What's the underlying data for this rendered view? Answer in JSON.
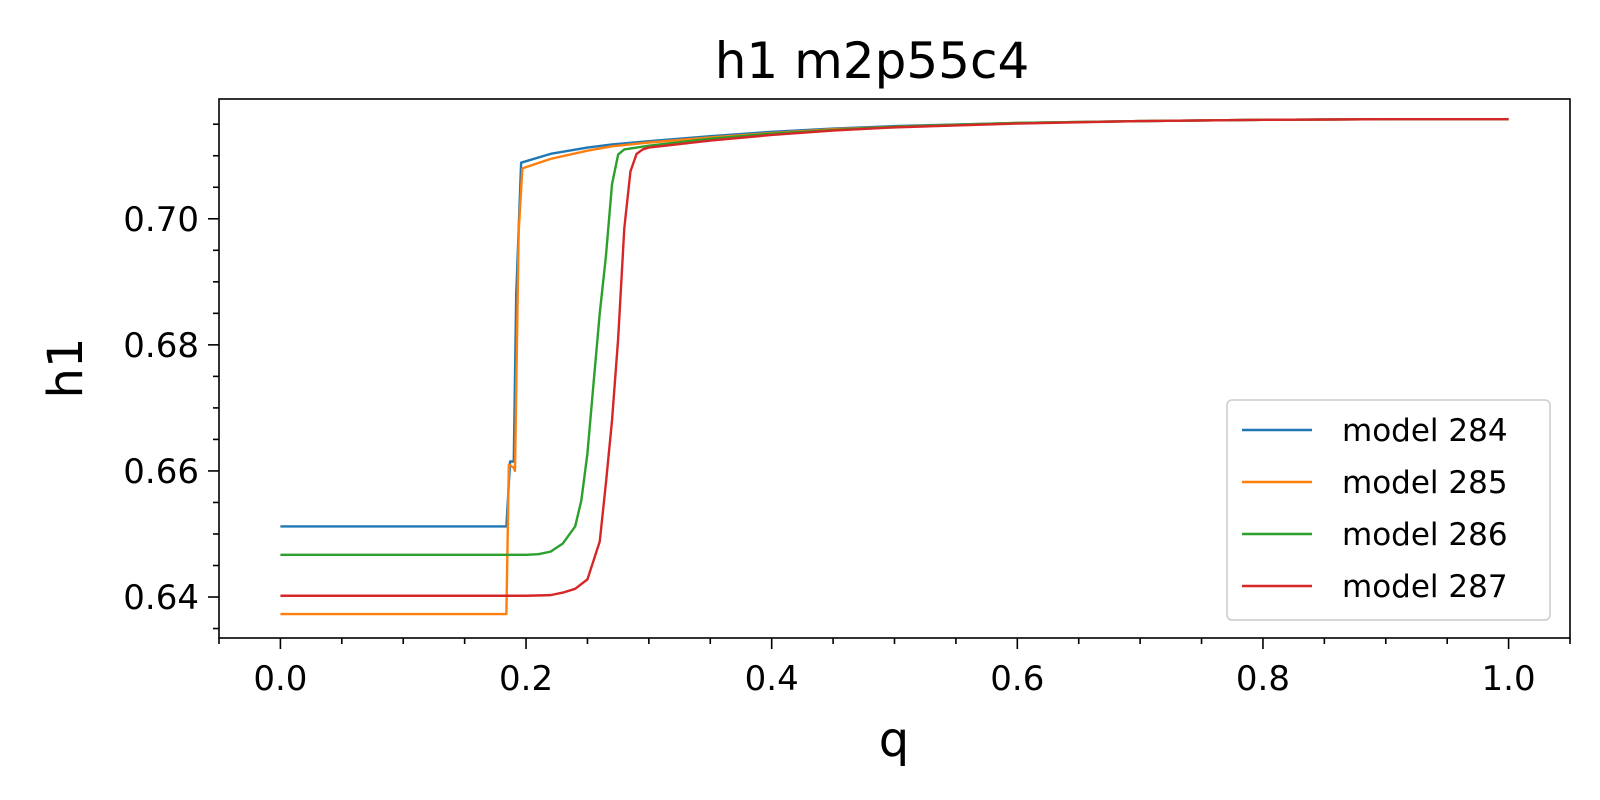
{
  "chart_data": {
    "type": "line",
    "title": "h1 m2p55c4",
    "xlabel": "q",
    "ylabel": "h1",
    "xlim": [
      -0.05,
      1.05
    ],
    "ylim": [
      0.6335,
      0.719
    ],
    "xticks": [
      0.0,
      0.2,
      0.4,
      0.6,
      0.8,
      1.0
    ],
    "xtick_labels": [
      "0.0",
      "0.2",
      "0.4",
      "0.6",
      "0.8",
      "1.0"
    ],
    "yticks": [
      0.64,
      0.66,
      0.68,
      0.7
    ],
    "ytick_labels": [
      "0.64",
      "0.66",
      "0.68",
      "0.70"
    ],
    "x_minor_step": 0.05,
    "y_minor_step": 0.005,
    "grid": false,
    "legend_position": "lower-right",
    "series": [
      {
        "name": "model 284",
        "color": "#1f77b4",
        "x": [
          0.0,
          0.184,
          0.187,
          0.19,
          0.192,
          0.196,
          0.22,
          0.25,
          0.27,
          0.3,
          0.35,
          0.4,
          0.45,
          0.5,
          0.6,
          0.7,
          0.8,
          0.9,
          1.0
        ],
        "y": [
          0.6512,
          0.6512,
          0.6615,
          0.6615,
          0.688,
          0.7089,
          0.7103,
          0.7113,
          0.7118,
          0.7123,
          0.7131,
          0.7138,
          0.7143,
          0.7147,
          0.7152,
          0.7155,
          0.7157,
          0.7158,
          0.7158
        ]
      },
      {
        "name": "model 285",
        "color": "#ff7f0e",
        "x": [
          0.0,
          0.184,
          0.186,
          0.19,
          0.191,
          0.194,
          0.197,
          0.22,
          0.25,
          0.27,
          0.3,
          0.35,
          0.4,
          0.45,
          0.5,
          0.6,
          0.7,
          0.8,
          0.9,
          1.0
        ],
        "y": [
          0.6373,
          0.6373,
          0.661,
          0.6605,
          0.66,
          0.698,
          0.708,
          0.7095,
          0.7108,
          0.7115,
          0.7121,
          0.7129,
          0.7136,
          0.7142,
          0.7146,
          0.7152,
          0.7155,
          0.7157,
          0.7158,
          0.7158
        ]
      },
      {
        "name": "model 286",
        "color": "#2ca02c",
        "x": [
          0.0,
          0.2,
          0.21,
          0.22,
          0.23,
          0.24,
          0.245,
          0.25,
          0.255,
          0.26,
          0.265,
          0.27,
          0.275,
          0.28,
          0.3,
          0.35,
          0.4,
          0.45,
          0.5,
          0.6,
          0.7,
          0.8,
          0.9,
          1.0
        ],
        "y": [
          0.6467,
          0.6467,
          0.6468,
          0.6472,
          0.6485,
          0.6512,
          0.6553,
          0.6628,
          0.674,
          0.685,
          0.694,
          0.7055,
          0.7102,
          0.711,
          0.7116,
          0.7127,
          0.7135,
          0.7141,
          0.7146,
          0.7152,
          0.7155,
          0.7157,
          0.7158,
          0.7158
        ]
      },
      {
        "name": "model 287",
        "color": "#d62728",
        "x": [
          0.0,
          0.2,
          0.22,
          0.23,
          0.24,
          0.25,
          0.26,
          0.265,
          0.27,
          0.275,
          0.28,
          0.285,
          0.29,
          0.295,
          0.3,
          0.35,
          0.4,
          0.45,
          0.5,
          0.6,
          0.7,
          0.8,
          0.9,
          1.0
        ],
        "y": [
          0.6402,
          0.6402,
          0.6403,
          0.6407,
          0.6413,
          0.6428,
          0.6488,
          0.658,
          0.668,
          0.681,
          0.6985,
          0.7075,
          0.7103,
          0.711,
          0.7113,
          0.7124,
          0.7133,
          0.714,
          0.7145,
          0.7151,
          0.7155,
          0.7157,
          0.7158,
          0.7158
        ]
      }
    ]
  }
}
